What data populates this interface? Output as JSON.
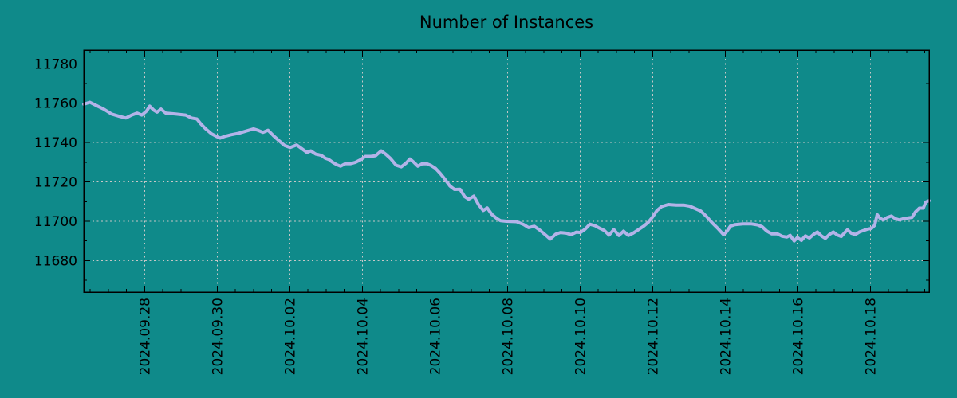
{
  "page": {
    "background_color": "#0F8A8A",
    "text_color": "#000000"
  },
  "chart_data": {
    "type": "line",
    "title": "Number of Instances",
    "xlabel": "",
    "ylabel": "",
    "legend": "none",
    "grid": {
      "show": true,
      "style": "dashed",
      "color": "#C7C7C7"
    },
    "border_color": "#000000",
    "x_axis": {
      "epoch": "2024-09-26",
      "range_days": [
        0.32,
        23.62
      ],
      "major_tick_days": [
        2,
        4,
        6,
        8,
        10,
        12,
        14,
        16,
        18,
        20,
        22
      ],
      "tick_labels": [
        "2024.09.28",
        "2024.09.30",
        "2024.10.02",
        "2024.10.04",
        "2024.10.06",
        "2024.10.08",
        "2024.10.10",
        "2024.10.12",
        "2024.10.14",
        "2024.10.16",
        "2024.10.18"
      ],
      "minor_step_days": 0.5,
      "label_rotation_deg": -90
    },
    "y_axis": {
      "range": [
        11664,
        11787
      ],
      "major_tick_values": [
        11680,
        11700,
        11720,
        11740,
        11760,
        11780
      ],
      "tick_labels": [
        "11680",
        "11700",
        "11720",
        "11740",
        "11760",
        "11780"
      ],
      "minor_step": 10
    },
    "series": [
      {
        "name": "instances",
        "color": "#B3B3E8",
        "line_width": 4,
        "points": [
          [
            0.32,
            11759.5
          ],
          [
            0.49,
            11760.5
          ],
          [
            0.65,
            11759.0
          ],
          [
            0.87,
            11757.0
          ],
          [
            1.09,
            11754.5
          ],
          [
            1.31,
            11753.3
          ],
          [
            1.48,
            11752.5
          ],
          [
            1.64,
            11754.0
          ],
          [
            1.79,
            11755.0
          ],
          [
            1.92,
            11754.0
          ],
          [
            2.05,
            11756.0
          ],
          [
            2.14,
            11758.5
          ],
          [
            2.25,
            11756.5
          ],
          [
            2.34,
            11755.5
          ],
          [
            2.45,
            11757.0
          ],
          [
            2.58,
            11755.0
          ],
          [
            2.85,
            11754.5
          ],
          [
            3.13,
            11754.0
          ],
          [
            3.29,
            11752.5
          ],
          [
            3.44,
            11752.0
          ],
          [
            3.55,
            11749.5
          ],
          [
            3.68,
            11747.0
          ],
          [
            3.84,
            11744.5
          ],
          [
            3.99,
            11743.0
          ],
          [
            4.08,
            11742.3
          ],
          [
            4.21,
            11743.2
          ],
          [
            4.38,
            11744.0
          ],
          [
            4.6,
            11744.8
          ],
          [
            4.82,
            11746.0
          ],
          [
            5.0,
            11747.0
          ],
          [
            5.13,
            11746.2
          ],
          [
            5.26,
            11745.2
          ],
          [
            5.4,
            11746.3
          ],
          [
            5.55,
            11743.5
          ],
          [
            5.7,
            11741.0
          ],
          [
            5.86,
            11738.5
          ],
          [
            6.01,
            11737.5
          ],
          [
            6.19,
            11738.8
          ],
          [
            6.34,
            11736.8
          ],
          [
            6.47,
            11735.0
          ],
          [
            6.58,
            11735.8
          ],
          [
            6.71,
            11734.2
          ],
          [
            6.87,
            11733.5
          ],
          [
            6.98,
            11732.0
          ],
          [
            7.07,
            11731.5
          ],
          [
            7.18,
            11730.0
          ],
          [
            7.29,
            11728.8
          ],
          [
            7.4,
            11728.0
          ],
          [
            7.53,
            11729.3
          ],
          [
            7.68,
            11729.3
          ],
          [
            7.81,
            11730.0
          ],
          [
            7.95,
            11731.3
          ],
          [
            8.08,
            11733.0
          ],
          [
            8.23,
            11733.0
          ],
          [
            8.36,
            11733.3
          ],
          [
            8.52,
            11735.8
          ],
          [
            8.65,
            11734.0
          ],
          [
            8.78,
            11731.8
          ],
          [
            8.93,
            11728.5
          ],
          [
            9.07,
            11727.7
          ],
          [
            9.2,
            11729.5
          ],
          [
            9.31,
            11731.7
          ],
          [
            9.42,
            11730.0
          ],
          [
            9.53,
            11728.0
          ],
          [
            9.64,
            11729.2
          ],
          [
            9.77,
            11729.3
          ],
          [
            9.88,
            11728.5
          ],
          [
            10.01,
            11727.0
          ],
          [
            10.14,
            11724.5
          ],
          [
            10.27,
            11721.5
          ],
          [
            10.41,
            11718.0
          ],
          [
            10.54,
            11716.2
          ],
          [
            10.69,
            11716.3
          ],
          [
            10.82,
            11712.5
          ],
          [
            10.93,
            11711.2
          ],
          [
            11.07,
            11712.8
          ],
          [
            11.2,
            11708.5
          ],
          [
            11.33,
            11705.5
          ],
          [
            11.44,
            11706.8
          ],
          [
            11.57,
            11703.5
          ],
          [
            11.7,
            11701.5
          ],
          [
            11.81,
            11700.3
          ],
          [
            11.97,
            11700.0
          ],
          [
            12.25,
            11699.8
          ],
          [
            12.45,
            11698.3
          ],
          [
            12.58,
            11696.8
          ],
          [
            12.74,
            11697.5
          ],
          [
            12.89,
            11695.5
          ],
          [
            13.02,
            11693.5
          ],
          [
            13.18,
            11691.0
          ],
          [
            13.33,
            11693.5
          ],
          [
            13.46,
            11694.3
          ],
          [
            13.62,
            11694.0
          ],
          [
            13.75,
            11693.2
          ],
          [
            13.9,
            11694.5
          ],
          [
            14.01,
            11694.3
          ],
          [
            14.14,
            11696.0
          ],
          [
            14.27,
            11698.5
          ],
          [
            14.41,
            11697.8
          ],
          [
            14.54,
            11696.5
          ],
          [
            14.67,
            11695.3
          ],
          [
            14.8,
            11693.0
          ],
          [
            14.93,
            11695.8
          ],
          [
            15.07,
            11692.8
          ],
          [
            15.2,
            11695.0
          ],
          [
            15.33,
            11692.8
          ],
          [
            15.46,
            11694.0
          ],
          [
            15.59,
            11695.5
          ],
          [
            15.75,
            11697.5
          ],
          [
            15.88,
            11699.5
          ],
          [
            15.99,
            11702.0
          ],
          [
            16.12,
            11705.5
          ],
          [
            16.25,
            11707.5
          ],
          [
            16.43,
            11708.5
          ],
          [
            16.65,
            11708.2
          ],
          [
            16.87,
            11708.2
          ],
          [
            17.02,
            11707.7
          ],
          [
            17.17,
            11706.5
          ],
          [
            17.33,
            11705.2
          ],
          [
            17.48,
            11702.5
          ],
          [
            17.64,
            11699.3
          ],
          [
            17.79,
            11696.5
          ],
          [
            17.95,
            11693.3
          ],
          [
            18.03,
            11694.5
          ],
          [
            18.14,
            11697.5
          ],
          [
            18.27,
            11698.3
          ],
          [
            18.49,
            11698.7
          ],
          [
            18.71,
            11698.7
          ],
          [
            18.89,
            11698.2
          ],
          [
            19.02,
            11697.2
          ],
          [
            19.15,
            11695.0
          ],
          [
            19.28,
            11693.6
          ],
          [
            19.44,
            11693.6
          ],
          [
            19.57,
            11692.4
          ],
          [
            19.7,
            11692.0
          ],
          [
            19.79,
            11692.9
          ],
          [
            19.9,
            11690.0
          ],
          [
            19.99,
            11691.8
          ],
          [
            20.1,
            11690.3
          ],
          [
            20.21,
            11692.6
          ],
          [
            20.32,
            11691.5
          ],
          [
            20.43,
            11693.3
          ],
          [
            20.54,
            11694.6
          ],
          [
            20.65,
            11692.6
          ],
          [
            20.76,
            11691.3
          ],
          [
            20.87,
            11693.3
          ],
          [
            20.98,
            11694.6
          ],
          [
            21.09,
            11693.0
          ],
          [
            21.2,
            11692.3
          ],
          [
            21.31,
            11694.6
          ],
          [
            21.37,
            11695.7
          ],
          [
            21.48,
            11693.9
          ],
          [
            21.59,
            11693.3
          ],
          [
            21.7,
            11694.6
          ],
          [
            21.81,
            11695.3
          ],
          [
            21.92,
            11696.0
          ],
          [
            22.03,
            11696.4
          ],
          [
            22.12,
            11698.0
          ],
          [
            22.19,
            11703.4
          ],
          [
            22.27,
            11701.5
          ],
          [
            22.36,
            11700.7
          ],
          [
            22.47,
            11702.0
          ],
          [
            22.58,
            11702.7
          ],
          [
            22.69,
            11701.3
          ],
          [
            22.8,
            11700.7
          ],
          [
            22.91,
            11701.3
          ],
          [
            23.07,
            11701.8
          ],
          [
            23.15,
            11702.0
          ],
          [
            23.24,
            11704.7
          ],
          [
            23.35,
            11706.7
          ],
          [
            23.46,
            11706.7
          ],
          [
            23.53,
            11709.8
          ],
          [
            23.62,
            11710.5
          ]
        ]
      }
    ]
  }
}
